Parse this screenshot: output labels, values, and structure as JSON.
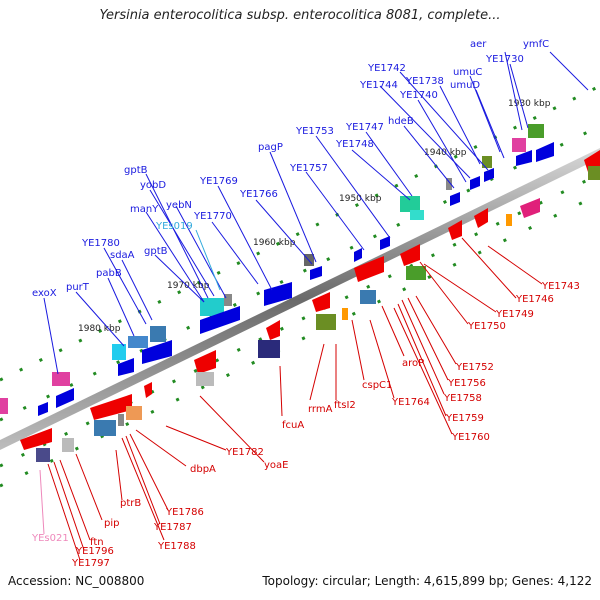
{
  "title": "Yersinia enterocolitica subsp. enterocolitica 8081, complete...",
  "footer": {
    "accession": "Accession: NC_008800",
    "summary": "Topology: circular; Length: 4,615,899 bp; Genes: 4,122"
  },
  "colors": {
    "forward_label": "#1a1adf",
    "reverse_label": "#d40000",
    "rna_label_forward": "#33aadd",
    "rna_label_reverse": "#ee88bb",
    "backbone": "#888888",
    "tick": "#228b22"
  },
  "kbp_markers": [
    "1930 kbp",
    "1940 kbp",
    "1950 kbp",
    "1960 kbp",
    "1970 kbp",
    "1980 kbp"
  ],
  "forward_labels": [
    "aer",
    "ymfC",
    "YE1730",
    "YE1742",
    "YE1744",
    "YE1738",
    "umuC",
    "umuD",
    "YE1740",
    "YE1747",
    "hdeB",
    "YE1753",
    "YE1748",
    "pagP",
    "YE1757",
    "YE1769",
    "YE1766",
    "gptB",
    "yobD",
    "yebN",
    "manY",
    "YE1770",
    "YEs019",
    "YE1780",
    "sdaA",
    "pabB",
    "gptB",
    "purT",
    "exoX"
  ],
  "reverse_labels": [
    "YE1743",
    "YE1746",
    "YE1749",
    "YE1750",
    "YE1752",
    "YE1756",
    "YE1758",
    "YE1759",
    "YE1760",
    "aroP",
    "YE1764",
    "cspC1",
    "ftsI2",
    "rrmA",
    "fcuA",
    "YE1782",
    "yoaE",
    "dbpA",
    "YE1786",
    "YE1787",
    "YE1788",
    "ptrB",
    "pip",
    "ftn",
    "YE1796",
    "YE1797",
    "YEs021"
  ]
}
